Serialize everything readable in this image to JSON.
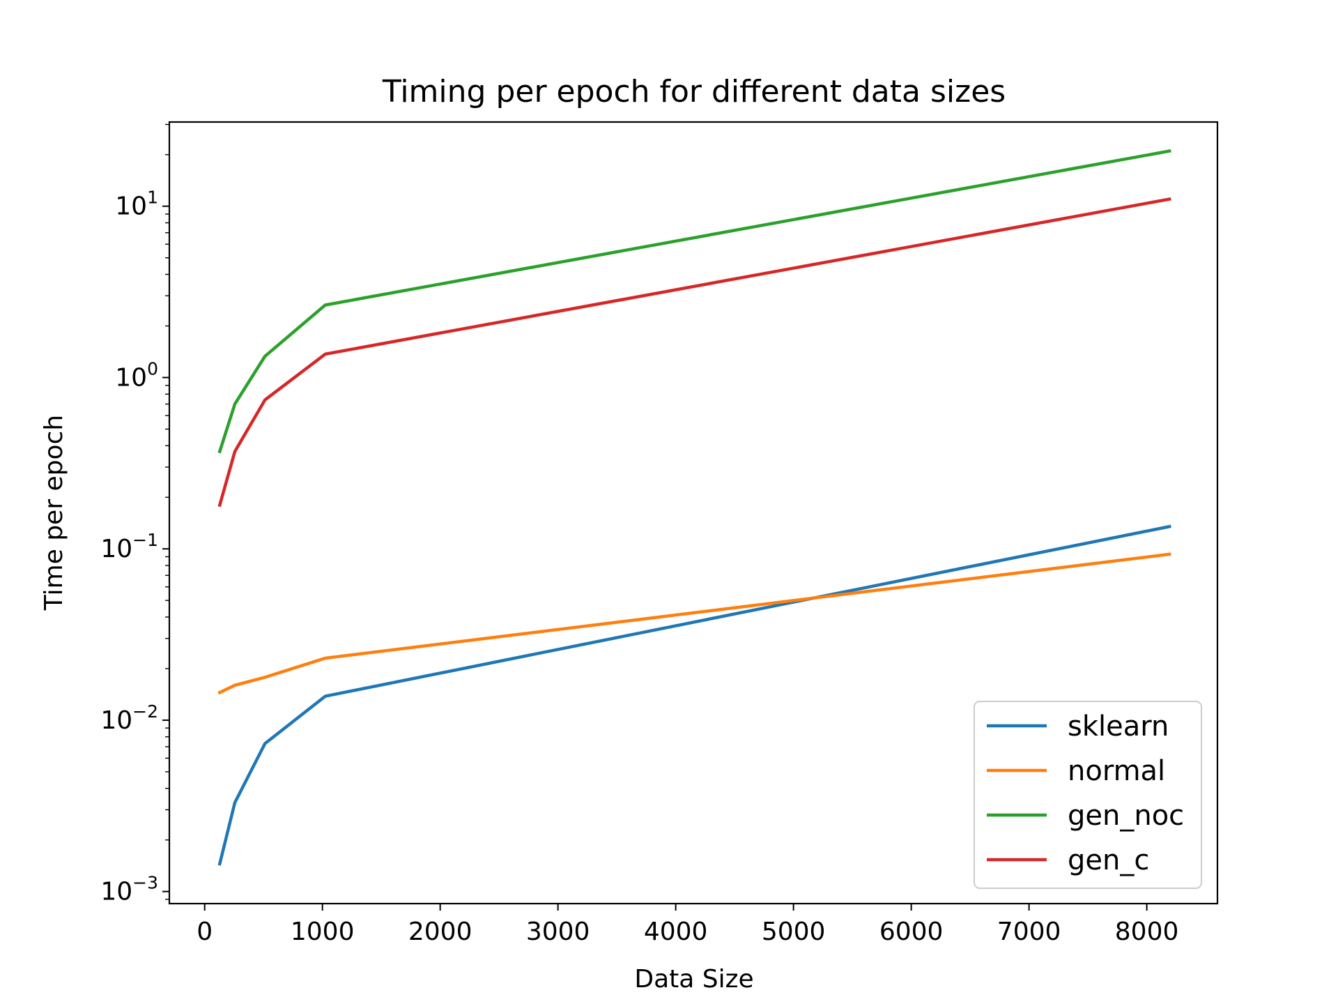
{
  "chart_data": {
    "type": "line",
    "title": "Timing per epoch for different data sizes",
    "xlabel": "Data Size",
    "ylabel": "Time per epoch",
    "yscale": "log",
    "xlim": [
      -300,
      8600
    ],
    "ylim": [
      0.00085,
      31
    ],
    "x": [
      128,
      256,
      512,
      1024,
      8192
    ],
    "xticks": [
      0,
      1000,
      2000,
      3000,
      4000,
      5000,
      6000,
      7000,
      8000
    ],
    "yticks": [
      {
        "base": "10",
        "exp": "−3",
        "value": 0.001
      },
      {
        "base": "10",
        "exp": "−2",
        "value": 0.01
      },
      {
        "base": "10",
        "exp": "−1",
        "value": 0.1
      },
      {
        "base": "10",
        "exp": "0",
        "value": 1
      },
      {
        "base": "10",
        "exp": "1",
        "value": 10
      }
    ],
    "series": [
      {
        "name": "sklearn",
        "color": "#1f77b4",
        "values": [
          0.00145,
          0.0033,
          0.0073,
          0.0138,
          0.135
        ]
      },
      {
        "name": "normal",
        "color": "#ff7f0e",
        "values": [
          0.0145,
          0.016,
          0.0178,
          0.023,
          0.093
        ]
      },
      {
        "name": "gen_noc",
        "color": "#2ca02c",
        "values": [
          0.37,
          0.7,
          1.33,
          2.65,
          21
        ]
      },
      {
        "name": "gen_c",
        "color": "#d62728",
        "values": [
          0.18,
          0.37,
          0.74,
          1.37,
          11
        ]
      }
    ],
    "legend": "lower-right",
    "grid": false
  }
}
